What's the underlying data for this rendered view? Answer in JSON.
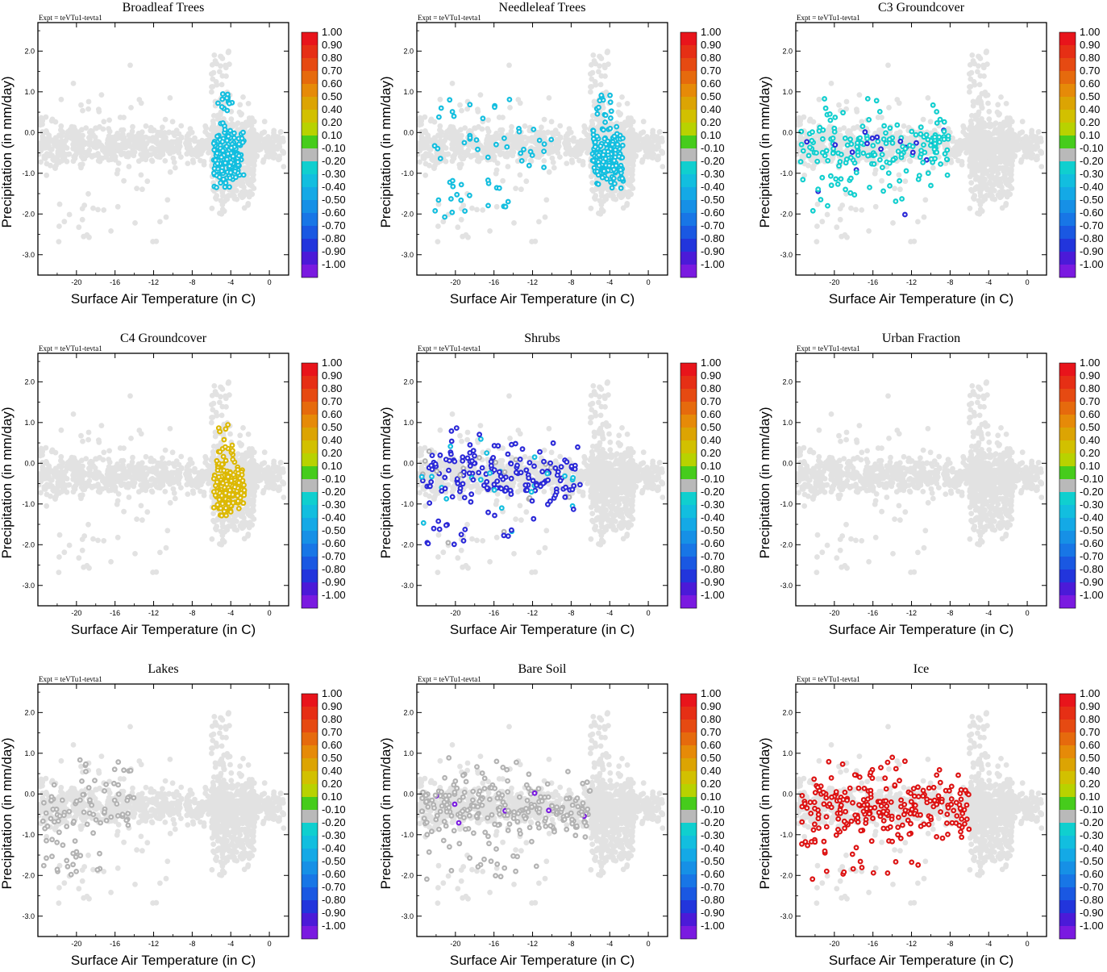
{
  "figure": {
    "experiment_label": "Expt = teVTu1-tevta1",
    "xlabel": "Surface Air Temperature (in C)",
    "ylabel": "Precipitation (in mm/day)",
    "x_ticks": [
      "-20",
      "-16",
      "-12",
      "-8",
      "-4",
      "0"
    ],
    "y_ticks": [
      "2.0",
      "1.0",
      "0.0",
      "-1.0",
      "-2.0",
      "-3.0"
    ],
    "colorbar_labels": [
      "1.00",
      "0.90",
      "0.80",
      "0.70",
      "0.60",
      "0.50",
      "0.40",
      "0.20",
      "0.10",
      "-0.10",
      "-0.20",
      "-0.30",
      "-0.40",
      "-0.50",
      "-0.60",
      "-0.70",
      "-0.80",
      "-0.90",
      "-1.00"
    ],
    "colorbar_colors": [
      "#e8141b",
      "#e62f15",
      "#e64a12",
      "#e66a0d",
      "#e68a08",
      "#dca403",
      "#d2c000",
      "#b8d200",
      "#46cc1c",
      "#b9b9b9",
      "#10cfcf",
      "#12bedf",
      "#14a9e6",
      "#1690e6",
      "#1876e6",
      "#1a58e2",
      "#2235dc",
      "#4b1ad8",
      "#7a1ae0"
    ],
    "background_point_color": "#e2e2e2",
    "neutral_point_color": "#b2b2b2",
    "panels": [
      {
        "title": "Broadleaf Trees"
      },
      {
        "title": "Needleleaf Trees"
      },
      {
        "title": "C3 Groundcover"
      },
      {
        "title": "C4 Groundcover"
      },
      {
        "title": "Shrubs"
      },
      {
        "title": "Urban Fraction"
      },
      {
        "title": "Lakes"
      },
      {
        "title": "Bare Soil"
      },
      {
        "title": "Ice"
      }
    ]
  },
  "chart_data": [
    {
      "type": "scatter",
      "title": "Broadleaf Trees",
      "xlabel": "Surface Air Temperature (in C)",
      "ylabel": "Precipitation (in mm/day)",
      "xlim": [
        -24,
        2
      ],
      "ylim": [
        -3.5,
        2.7
      ],
      "highlight_region": "warm cluster (-6 to -3 C)",
      "highlight_color": "#12bedf"
    },
    {
      "type": "scatter",
      "title": "Needleleaf Trees",
      "xlabel": "Surface Air Temperature (in C)",
      "ylabel": "Precipitation (in mm/day)",
      "xlim": [
        -24,
        2
      ],
      "ylim": [
        -3.5,
        2.7
      ],
      "highlight_region": "warm cluster plus scattered cold points",
      "highlight_color": "#12bedf"
    },
    {
      "type": "scatter",
      "title": "C3 Groundcover",
      "xlabel": "Surface Air Temperature (in C)",
      "ylabel": "Precipitation (in mm/day)",
      "xlim": [
        -24,
        2
      ],
      "ylim": [
        -3.5,
        2.7
      ],
      "highlight_region": "cold cluster (-24 to -8 C)",
      "highlight_color": "#10cfcf"
    },
    {
      "type": "scatter",
      "title": "C4 Groundcover",
      "xlabel": "Surface Air Temperature (in C)",
      "ylabel": "Precipitation (in mm/day)",
      "xlim": [
        -24,
        2
      ],
      "ylim": [
        -3.5,
        2.7
      ],
      "highlight_region": "warm cluster (-6 to -3 C)",
      "highlight_color": "#dcb800"
    },
    {
      "type": "scatter",
      "title": "Shrubs",
      "xlabel": "Surface Air Temperature (in C)",
      "ylabel": "Precipitation (in mm/day)",
      "xlim": [
        -24,
        2
      ],
      "ylim": [
        -3.5,
        2.7
      ],
      "highlight_region": "cold cluster (-24 to -8 C)",
      "highlight_color": "#2a28d8"
    },
    {
      "type": "scatter",
      "title": "Urban Fraction",
      "xlabel": "Surface Air Temperature (in C)",
      "ylabel": "Precipitation (in mm/day)",
      "xlim": [
        -24,
        2
      ],
      "ylim": [
        -3.5,
        2.7
      ],
      "highlight_region": "none",
      "highlight_color": "#e2e2e2"
    },
    {
      "type": "scatter",
      "title": "Lakes",
      "xlabel": "Surface Air Temperature (in C)",
      "ylabel": "Precipitation (in mm/day)",
      "xlim": [
        -24,
        2
      ],
      "ylim": [
        -3.5,
        2.7
      ],
      "highlight_region": "cold points (-24 to -14 C)",
      "highlight_color": "#b2b2b2"
    },
    {
      "type": "scatter",
      "title": "Bare Soil",
      "xlabel": "Surface Air Temperature (in C)",
      "ylabel": "Precipitation (in mm/day)",
      "xlim": [
        -24,
        2
      ],
      "ylim": [
        -3.5,
        2.7
      ],
      "highlight_region": "cold cluster (-24 to -6 C)",
      "highlight_color": "#b2b2b2"
    },
    {
      "type": "scatter",
      "title": "Ice",
      "xlabel": "Surface Air Temperature (in C)",
      "ylabel": "Precipitation (in mm/day)",
      "xlim": [
        -24,
        2
      ],
      "ylim": [
        -3.5,
        2.7
      ],
      "highlight_region": "cold cluster (-24 to -6 C)",
      "highlight_color": "#dd1111"
    }
  ]
}
